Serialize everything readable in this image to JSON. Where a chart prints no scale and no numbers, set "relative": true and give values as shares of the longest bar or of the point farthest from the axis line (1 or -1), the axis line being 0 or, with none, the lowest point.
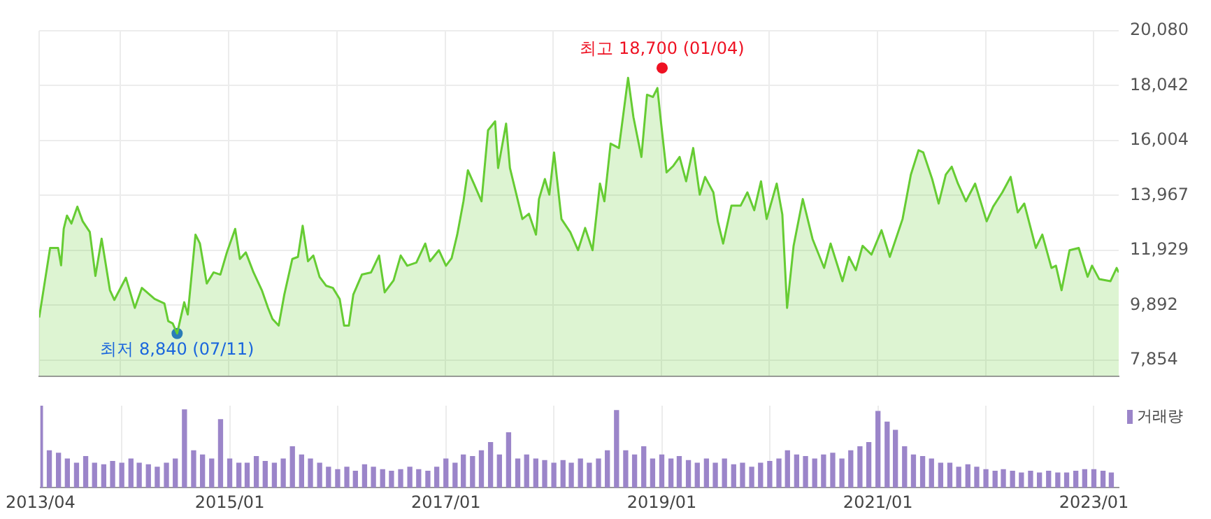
{
  "chart_data": [
    {
      "type": "area",
      "xlim": [
        "2013-04-01",
        "2023-03-26"
      ],
      "ylim": [
        7260,
        20080
      ],
      "xticks": [
        {
          "value": "2013-04",
          "label": null
        },
        {
          "value": "2014-01",
          "label": null
        },
        {
          "value": "2015-01",
          "label": null
        },
        {
          "value": "2016-01",
          "label": null
        },
        {
          "value": "2017-01",
          "label": null
        },
        {
          "value": "2018-01",
          "label": null
        },
        {
          "value": "2019-01",
          "label": null
        },
        {
          "value": "2020-01",
          "label": null
        },
        {
          "value": "2021-01",
          "label": null
        },
        {
          "value": "2022-01",
          "label": null
        },
        {
          "value": "2023-01",
          "label": null
        }
      ],
      "yticks": [
        {
          "value": 7854,
          "label": "7,854"
        },
        {
          "value": 9892,
          "label": "9,892"
        },
        {
          "value": 11929,
          "label": "11,929"
        },
        {
          "value": 13967,
          "label": "13,967"
        },
        {
          "value": 16004,
          "label": "16,004"
        },
        {
          "value": 18042,
          "label": "18,042"
        },
        {
          "value": 20080,
          "label": "20,080"
        }
      ],
      "tick_labels": "y",
      "grid": true,
      "legend": false,
      "series": [
        {
          "color": "#66cc33",
          "marker": "none",
          "x": [
            "2013-04-01",
            "2013-05-08",
            "2013-06-04",
            "2013-06-14",
            "2013-06-23",
            "2013-07-04",
            "2013-07-19",
            "2013-08-08",
            "2013-08-26",
            "2013-09-19",
            "2013-10-08",
            "2013-10-29",
            "2013-11-26",
            "2013-12-11",
            "2014-01-19",
            "2014-02-18",
            "2014-03-14",
            "2014-04-26",
            "2014-05-29",
            "2014-06-11",
            "2014-06-26",
            "2014-07-11",
            "2014-08-04",
            "2014-08-16",
            "2014-09-11",
            "2014-09-26",
            "2014-10-19",
            "2014-11-11",
            "2014-12-04",
            "2014-12-26",
            "2015-01-23",
            "2015-02-08",
            "2015-02-28",
            "2015-03-26",
            "2015-04-23",
            "2015-05-14",
            "2015-05-29",
            "2015-06-19",
            "2015-07-08",
            "2015-08-04",
            "2015-08-23",
            "2015-09-08",
            "2015-09-26",
            "2015-10-14",
            "2015-11-04",
            "2015-11-26",
            "2015-12-19",
            "2016-01-11",
            "2016-01-26",
            "2016-02-11",
            "2016-02-26",
            "2016-03-26",
            "2016-04-26",
            "2016-05-23",
            "2016-06-11",
            "2016-07-11",
            "2016-08-04",
            "2016-08-26",
            "2016-09-26",
            "2016-10-26",
            "2016-11-11",
            "2016-12-11",
            "2017-01-04",
            "2017-01-23",
            "2017-02-11",
            "2017-03-04",
            "2017-03-19",
            "2017-04-08",
            "2017-05-04",
            "2017-05-26",
            "2017-06-19",
            "2017-06-29",
            "2017-07-26",
            "2017-08-08",
            "2017-09-19",
            "2017-10-11",
            "2017-11-04",
            "2017-11-14",
            "2017-12-04",
            "2017-12-19",
            "2018-01-04",
            "2018-01-29",
            "2018-02-28",
            "2018-03-26",
            "2018-04-19",
            "2018-05-14",
            "2018-06-08",
            "2018-06-23",
            "2018-07-14",
            "2018-08-11",
            "2018-09-11",
            "2018-09-29",
            "2018-10-26",
            "2018-11-14",
            "2018-12-04",
            "2018-12-19",
            "2018-12-30",
            "2019-01-19",
            "2019-02-11",
            "2019-03-04",
            "2019-03-26",
            "2019-04-19",
            "2019-05-11",
            "2019-05-29",
            "2019-06-26",
            "2019-07-11",
            "2019-07-29",
            "2019-08-26",
            "2019-09-26",
            "2019-10-19",
            "2019-11-11",
            "2019-12-04",
            "2019-12-23",
            "2020-01-26",
            "2020-02-14",
            "2020-03-01",
            "2020-03-23",
            "2020-04-23",
            "2020-05-26",
            "2020-07-04",
            "2020-07-26",
            "2020-09-04",
            "2020-09-26",
            "2020-10-19",
            "2020-11-11",
            "2020-12-11",
            "2021-01-14",
            "2021-02-11",
            "2021-03-26",
            "2021-04-23",
            "2021-05-19",
            "2021-06-04",
            "2021-07-04",
            "2021-07-26",
            "2021-08-19",
            "2021-09-08",
            "2021-09-29",
            "2021-10-26",
            "2021-11-26",
            "2022-01-04",
            "2022-01-26",
            "2022-02-26",
            "2022-03-26",
            "2022-04-19",
            "2022-05-11",
            "2022-06-19",
            "2022-07-11",
            "2022-08-11",
            "2022-08-26",
            "2022-09-14",
            "2022-10-11",
            "2022-11-11",
            "2022-12-11",
            "2022-12-26",
            "2023-01-19",
            "2023-02-26",
            "2023-03-19",
            "2023-03-26"
          ],
          "values": [
            9430,
            12016,
            12016,
            11370,
            12724,
            13218,
            12922,
            13550,
            13006,
            12610,
            10978,
            12360,
            10448,
            10087,
            10910,
            9790,
            10532,
            10121,
            9954,
            9296,
            9212,
            8840,
            10000,
            9543,
            12511,
            12179,
            10695,
            11108,
            11027,
            11850,
            12724,
            11606,
            11850,
            11108,
            10448,
            9790,
            9380,
            9132,
            10285,
            11606,
            11685,
            12840,
            11521,
            11735,
            10943,
            10614,
            10532,
            10121,
            9132,
            9132,
            10285,
            11027,
            11108,
            11735,
            10367,
            10812,
            11735,
            11357,
            11472,
            12179,
            11521,
            11932,
            11357,
            11636,
            12511,
            13748,
            14900,
            14406,
            13748,
            16385,
            16716,
            14985,
            16633,
            14985,
            13090,
            13287,
            12511,
            13830,
            14574,
            13995,
            15563,
            13090,
            12595,
            11932,
            12758,
            11932,
            14406,
            13748,
            15890,
            15726,
            18334,
            16880,
            15395,
            17705,
            17622,
            17953,
            16798,
            14821,
            15068,
            15395,
            14491,
            15726,
            13995,
            14654,
            14079,
            13006,
            12179,
            13585,
            13585,
            14079,
            13416,
            14491,
            13090,
            14406,
            13253,
            9790,
            12095,
            13830,
            12348,
            11274,
            12179,
            10780,
            11685,
            11190,
            12095,
            11769,
            12675,
            11685,
            13090,
            14737,
            15645,
            15563,
            14574,
            13665,
            14737,
            15034,
            14406,
            13748,
            14406,
            13006,
            13550,
            14079,
            14654,
            13337,
            13665,
            12016,
            12511,
            11274,
            11357,
            10448,
            11932,
            12016,
            10943,
            11357,
            10862,
            10780,
            11274,
            11108
          ]
        },
        {
          "type": "scatter",
          "marker": "circle",
          "x": [
            "2019-01-04",
            "2014-07-11"
          ],
          "values": [
            18700,
            8840
          ],
          "colors": [
            "#ee1122",
            "#1a66dd"
          ]
        }
      ],
      "annotations": [
        {
          "text": "최고 18,700 (01/04)",
          "x": "2019-01-04",
          "y": 18700
        },
        {
          "text": "최저 8,840 (07/11)",
          "x": "2014-07-11",
          "y": 8840
        }
      ]
    },
    {
      "type": "bar",
      "relative": true,
      "xlim": [
        "2013-04-01",
        "2023-03-26"
      ],
      "xticks": [
        {
          "value": "2013-04",
          "label": "2013/04"
        },
        {
          "value": "2014-01",
          "label": null
        },
        {
          "value": "2015-01",
          "label": "2015/01"
        },
        {
          "value": "2016-01",
          "label": null
        },
        {
          "value": "2017-01",
          "label": "2017/01"
        },
        {
          "value": "2018-01",
          "label": null
        },
        {
          "value": "2019-01",
          "label": "2019/01"
        },
        {
          "value": "2020-01",
          "label": null
        },
        {
          "value": "2021-01",
          "label": "2021/01"
        },
        {
          "value": "2022-01",
          "label": null
        },
        {
          "value": "2023-01",
          "label": "2023/01"
        }
      ],
      "tick_labels": "x",
      "grid": "x",
      "legend": "right",
      "series": [
        {
          "name": "거래량",
          "color": "#9b85c9",
          "x": [
            "2013-04",
            "2013-05",
            "2013-06",
            "2013-07",
            "2013-08",
            "2013-09",
            "2013-10",
            "2013-11",
            "2013-12",
            "2014-01",
            "2014-02",
            "2014-03",
            "2014-04",
            "2014-05",
            "2014-06",
            "2014-07",
            "2014-08",
            "2014-09",
            "2014-10",
            "2014-11",
            "2014-12",
            "2015-01",
            "2015-02",
            "2015-03",
            "2015-04",
            "2015-05",
            "2015-06",
            "2015-07",
            "2015-08",
            "2015-09",
            "2015-10",
            "2015-11",
            "2015-12",
            "2016-01",
            "2016-02",
            "2016-03",
            "2016-04",
            "2016-05",
            "2016-06",
            "2016-07",
            "2016-08",
            "2016-09",
            "2016-10",
            "2016-11",
            "2016-12",
            "2017-01",
            "2017-02",
            "2017-03",
            "2017-04",
            "2017-05",
            "2017-06",
            "2017-07",
            "2017-08",
            "2017-09",
            "2017-10",
            "2017-11",
            "2017-12",
            "2018-01",
            "2018-02",
            "2018-03",
            "2018-04",
            "2018-05",
            "2018-06",
            "2018-07",
            "2018-08",
            "2018-09",
            "2018-10",
            "2018-11",
            "2018-12",
            "2019-01",
            "2019-02",
            "2019-03",
            "2019-04",
            "2019-05",
            "2019-06",
            "2019-07",
            "2019-08",
            "2019-09",
            "2019-10",
            "2019-11",
            "2019-12",
            "2020-01",
            "2020-02",
            "2020-03",
            "2020-04",
            "2020-05",
            "2020-06",
            "2020-07",
            "2020-08",
            "2020-09",
            "2020-10",
            "2020-11",
            "2020-12",
            "2021-01",
            "2021-02",
            "2021-03",
            "2021-04",
            "2021-05",
            "2021-06",
            "2021-07",
            "2021-08",
            "2021-09",
            "2021-10",
            "2021-11",
            "2021-12",
            "2022-01",
            "2022-02",
            "2022-03",
            "2022-04",
            "2022-05",
            "2022-06",
            "2022-07",
            "2022-08",
            "2022-09",
            "2022-10",
            "2022-11",
            "2022-12",
            "2023-01",
            "2023-02",
            "2023-03"
          ],
          "values": [
            1.0,
            0.45,
            0.42,
            0.35,
            0.3,
            0.38,
            0.3,
            0.28,
            0.32,
            0.3,
            0.35,
            0.3,
            0.28,
            0.25,
            0.3,
            0.35,
            0.95,
            0.45,
            0.4,
            0.35,
            0.83,
            0.35,
            0.3,
            0.3,
            0.38,
            0.32,
            0.3,
            0.35,
            0.5,
            0.4,
            0.35,
            0.3,
            0.25,
            0.22,
            0.25,
            0.2,
            0.28,
            0.25,
            0.22,
            0.2,
            0.22,
            0.25,
            0.22,
            0.2,
            0.25,
            0.35,
            0.3,
            0.4,
            0.38,
            0.45,
            0.55,
            0.4,
            0.67,
            0.35,
            0.4,
            0.35,
            0.33,
            0.3,
            0.33,
            0.3,
            0.35,
            0.3,
            0.35,
            0.45,
            0.94,
            0.45,
            0.4,
            0.5,
            0.35,
            0.4,
            0.35,
            0.38,
            0.33,
            0.3,
            0.35,
            0.3,
            0.35,
            0.28,
            0.3,
            0.25,
            0.3,
            0.32,
            0.35,
            0.45,
            0.4,
            0.38,
            0.35,
            0.4,
            0.42,
            0.35,
            0.45,
            0.5,
            0.55,
            0.93,
            0.8,
            0.7,
            0.5,
            0.4,
            0.38,
            0.35,
            0.3,
            0.3,
            0.25,
            0.28,
            0.25,
            0.22,
            0.2,
            0.22,
            0.2,
            0.18,
            0.2,
            0.18,
            0.2,
            0.18,
            0.18,
            0.2,
            0.22,
            0.22,
            0.2,
            0.18
          ]
        }
      ]
    }
  ]
}
